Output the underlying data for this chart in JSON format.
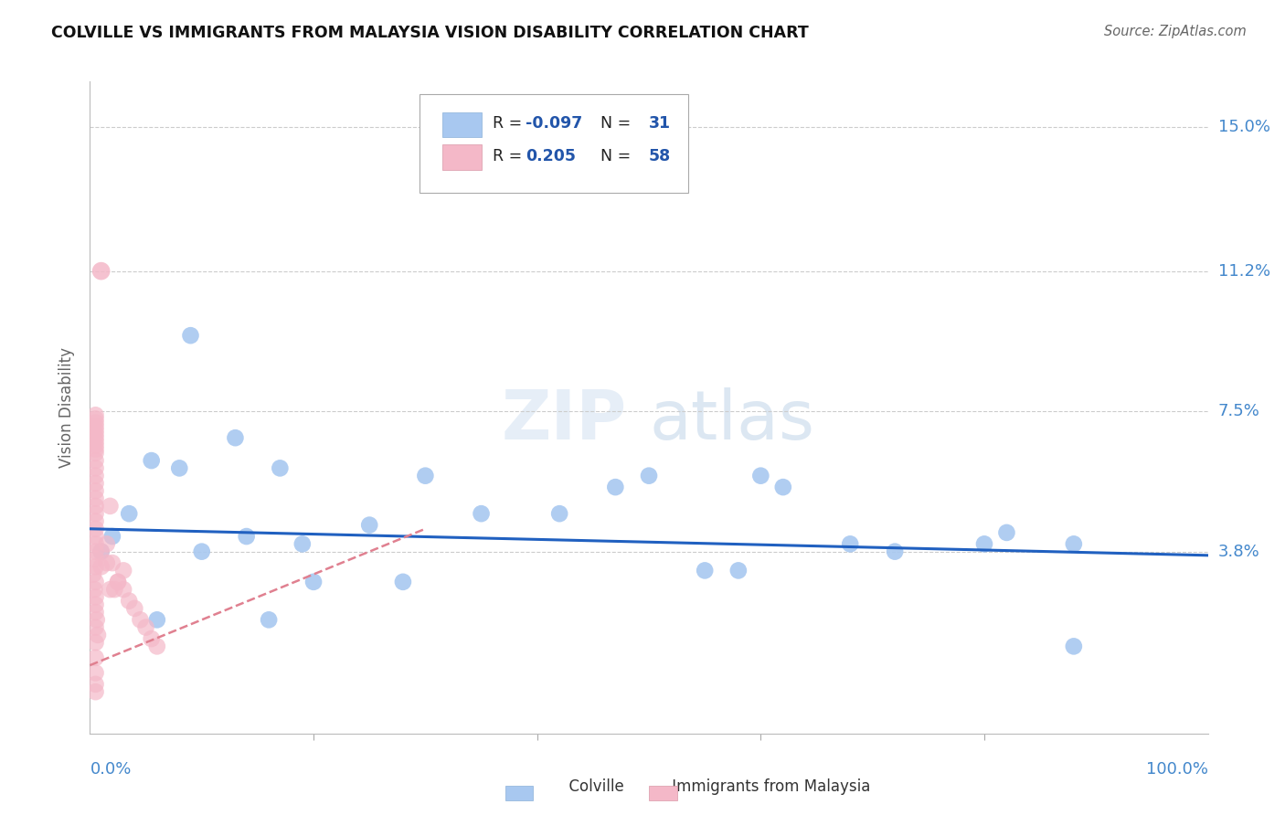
{
  "title": "COLVILLE VS IMMIGRANTS FROM MALAYSIA VISION DISABILITY CORRELATION CHART",
  "source": "Source: ZipAtlas.com",
  "ylabel": "Vision Disability",
  "xlim": [
    0.0,
    1.0
  ],
  "ylim": [
    -0.01,
    0.162
  ],
  "watermark_zip": "ZIP",
  "watermark_atlas": "atlas",
  "legend_blue_r": "-0.097",
  "legend_blue_n": "31",
  "legend_pink_r": "0.205",
  "legend_pink_n": "58",
  "blue_color": "#a8c8f0",
  "pink_color": "#f4b8c8",
  "trend_blue_color": "#2060c0",
  "trend_pink_color": "#e08090",
  "grid_color": "#cccccc",
  "background": "#ffffff",
  "blue_scatter_x": [
    0.01,
    0.02,
    0.055,
    0.09,
    0.13,
    0.17,
    0.1,
    0.14,
    0.2,
    0.28,
    0.3,
    0.47,
    0.5,
    0.6,
    0.62,
    0.68,
    0.8,
    0.82,
    0.035,
    0.08,
    0.19,
    0.25,
    0.35,
    0.42,
    0.55,
    0.58,
    0.72,
    0.88,
    0.06,
    0.16,
    0.88
  ],
  "blue_scatter_y": [
    0.038,
    0.042,
    0.062,
    0.095,
    0.068,
    0.06,
    0.038,
    0.042,
    0.03,
    0.03,
    0.058,
    0.055,
    0.058,
    0.058,
    0.055,
    0.04,
    0.04,
    0.043,
    0.048,
    0.06,
    0.04,
    0.045,
    0.048,
    0.048,
    0.033,
    0.033,
    0.038,
    0.04,
    0.02,
    0.02,
    0.013
  ],
  "pink_scatter_x": [
    0.003,
    0.004,
    0.005,
    0.006,
    0.007,
    0.005,
    0.005,
    0.005,
    0.005,
    0.005,
    0.005,
    0.005,
    0.005,
    0.005,
    0.005,
    0.005,
    0.005,
    0.005,
    0.005,
    0.005,
    0.005,
    0.005,
    0.005,
    0.005,
    0.005,
    0.005,
    0.005,
    0.005,
    0.005,
    0.005,
    0.005,
    0.005,
    0.005,
    0.005,
    0.005,
    0.005,
    0.005,
    0.005,
    0.005,
    0.005,
    0.01,
    0.015,
    0.018,
    0.022,
    0.025,
    0.03,
    0.035,
    0.04,
    0.045,
    0.05,
    0.055,
    0.06,
    0.018,
    0.03,
    0.01,
    0.015,
    0.02,
    0.025
  ],
  "pink_scatter_y": [
    0.032,
    0.028,
    0.024,
    0.02,
    0.016,
    0.034,
    0.03,
    0.026,
    0.022,
    0.018,
    0.014,
    0.01,
    0.006,
    0.003,
    0.001,
    0.036,
    0.038,
    0.04,
    0.042,
    0.044,
    0.046,
    0.048,
    0.05,
    0.052,
    0.054,
    0.056,
    0.058,
    0.06,
    0.062,
    0.064,
    0.065,
    0.066,
    0.067,
    0.068,
    0.069,
    0.07,
    0.071,
    0.072,
    0.073,
    0.074,
    0.034,
    0.035,
    0.028,
    0.028,
    0.03,
    0.028,
    0.025,
    0.023,
    0.02,
    0.018,
    0.015,
    0.013,
    0.05,
    0.033,
    0.038,
    0.04,
    0.035,
    0.03
  ],
  "pink_solo_x": [
    0.01
  ],
  "pink_solo_y": [
    0.112
  ],
  "blue_trend_x0": 0.0,
  "blue_trend_x1": 1.0,
  "blue_trend_y0": 0.044,
  "blue_trend_y1": 0.037,
  "pink_trend_x0": 0.0,
  "pink_trend_x1": 0.3,
  "pink_trend_y0": 0.008,
  "pink_trend_y1": 0.044,
  "ytick_vals": [
    0.038,
    0.075,
    0.112,
    0.15
  ],
  "ytick_labels": [
    "3.8%",
    "7.5%",
    "11.2%",
    "15.0%"
  ]
}
